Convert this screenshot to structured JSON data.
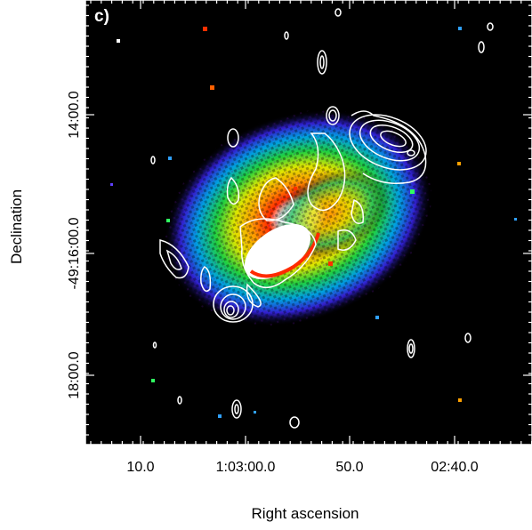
{
  "panel_label": "c)",
  "x_axis": {
    "title": "Right ascension",
    "tick_labels": [
      "10.0",
      "1:03:00.0",
      "50.0",
      "02:40.0"
    ]
  },
  "y_axis": {
    "title": "Declination",
    "tick_labels": [
      "14:00.0",
      "-49:16:00.0",
      "18:00.0"
    ]
  },
  "colors": {
    "background": "#000000",
    "contours": "#ffffff",
    "frame": "#ffffff"
  }
}
